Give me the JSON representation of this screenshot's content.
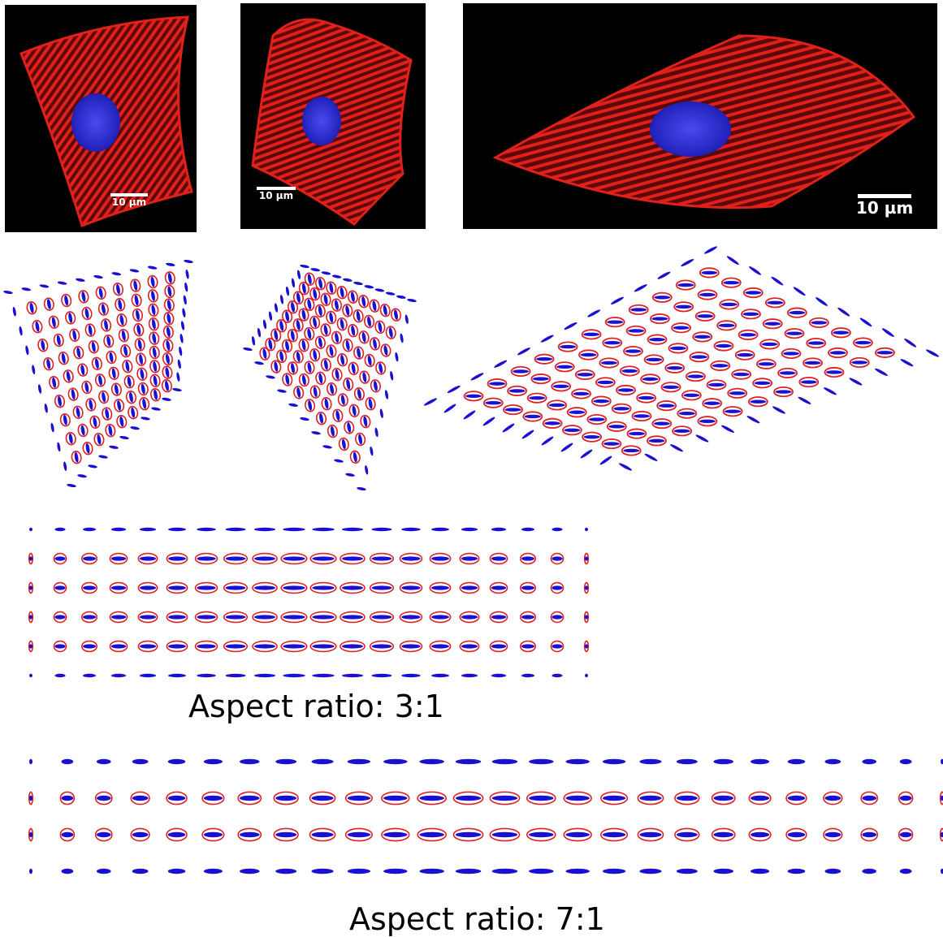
{
  "figure": {
    "micrographs": [
      {
        "name": "triangular-cell",
        "scale_label": "10 µm"
      },
      {
        "name": "irregular-cell",
        "scale_label": "10 µm"
      },
      {
        "name": "elongated-cell",
        "scale_label": "10 µm"
      }
    ],
    "captions": {
      "ratio_3_1": "Aspect ratio: 3:1",
      "ratio_7_1": "Aspect ratio: 7:1"
    }
  },
  "colors": {
    "background": "#ffffff",
    "micrograph_bg": "#000000",
    "actin_red": "#e0201a",
    "nucleus_blue": "#2a2ad8",
    "ellipse_blue": "#1a10d0",
    "ellipse_red": "#e02020",
    "scalebar": "#ffffff"
  }
}
